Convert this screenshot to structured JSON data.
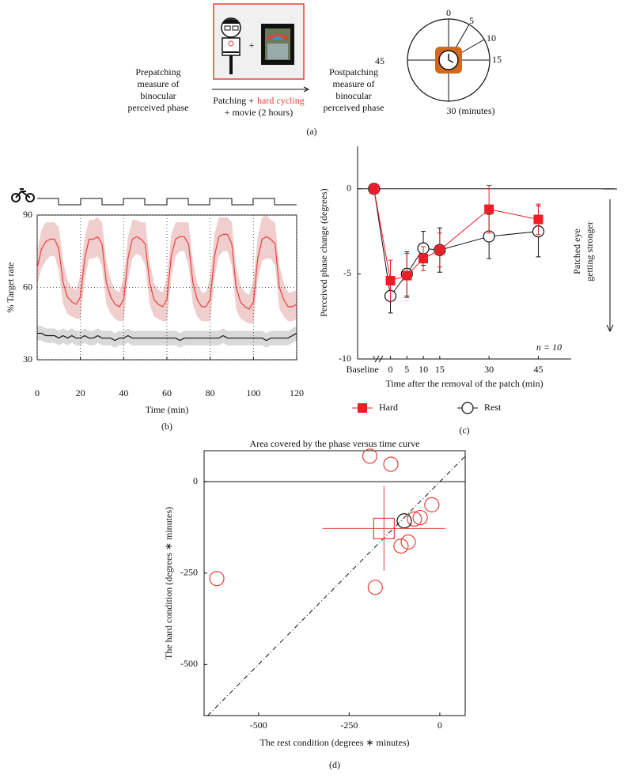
{
  "diagram": {
    "prepatching": [
      "Prepatching",
      "measure of",
      "binocular",
      "perceived phase"
    ],
    "patching": [
      "Patching +",
      "hard cycling",
      "+ movie (2 hours)"
    ],
    "plus": "+",
    "postpatching": [
      "Postpatching",
      "measure of",
      "binocular",
      "perceived phase"
    ],
    "clock_labels": [
      "0",
      "5",
      "10",
      "15",
      "45",
      "30 (minutes)"
    ],
    "panel": "(a)"
  },
  "chart_data": [
    {
      "type": "line",
      "panel": "(b)",
      "x_label": "Time (min)",
      "y_label": "% Target rate",
      "xlim": [
        0,
        120
      ],
      "ylim": [
        30,
        90
      ],
      "xticks": [
        0,
        20,
        40,
        60,
        80,
        100,
        120
      ],
      "yticks": [
        30,
        60,
        90
      ],
      "grid": true,
      "x": [
        0,
        2,
        4,
        6,
        8,
        10,
        12,
        14,
        16,
        18,
        20,
        22,
        24,
        26,
        28,
        30,
        32,
        34,
        36,
        38,
        40,
        42,
        44,
        46,
        48,
        50,
        52,
        54,
        56,
        58,
        60,
        62,
        64,
        66,
        68,
        70,
        72,
        74,
        76,
        78,
        80,
        82,
        84,
        86,
        88,
        90,
        92,
        94,
        96,
        98,
        100,
        102,
        104,
        106,
        108,
        110,
        112,
        114,
        116,
        118,
        120
      ],
      "series": [
        {
          "color": "#e8403a",
          "band_color": "rgba(200,60,60,0.25)",
          "values": [
            68,
            76,
            79,
            80,
            80,
            76,
            62,
            56,
            54,
            53,
            56,
            72,
            80,
            80,
            81,
            78,
            62,
            56,
            53,
            52,
            55,
            72,
            80,
            81,
            80,
            78,
            62,
            55,
            53,
            52,
            55,
            73,
            80,
            81,
            81,
            78,
            62,
            55,
            52,
            52,
            55,
            73,
            81,
            82,
            82,
            78,
            60,
            54,
            52,
            51,
            54,
            72,
            80,
            81,
            80,
            78,
            60,
            55,
            52,
            52,
            53
          ],
          "band": [
            7,
            8,
            8,
            7,
            7,
            9,
            9,
            7,
            6,
            6,
            9,
            9,
            8,
            8,
            8,
            9,
            9,
            7,
            6,
            6,
            9,
            9,
            8,
            7,
            7,
            9,
            9,
            7,
            6,
            6,
            9,
            9,
            7,
            6,
            6,
            9,
            9,
            7,
            6,
            6,
            9,
            9,
            8,
            7,
            7,
            9,
            9,
            7,
            6,
            6,
            9,
            9,
            9,
            9,
            8,
            9,
            9,
            7,
            6,
            6,
            6
          ]
        },
        {
          "color": "#111111",
          "band_color": "rgba(0,0,0,0.15)",
          "values": [
            41,
            41,
            40,
            40,
            40,
            39,
            40,
            39,
            40,
            39,
            39,
            40,
            39,
            39,
            40,
            39,
            39,
            39,
            38,
            39,
            39,
            40,
            39,
            39,
            39,
            39,
            39,
            39,
            39,
            39,
            39,
            39,
            39,
            38,
            39,
            39,
            39,
            39,
            39,
            39,
            39,
            39,
            39,
            40,
            39,
            39,
            39,
            39,
            39,
            39,
            39,
            39,
            39,
            38,
            39,
            39,
            39,
            39,
            39,
            40,
            41
          ],
          "band": [
            3,
            3,
            3,
            3,
            3,
            3,
            3,
            3,
            3,
            3,
            3,
            3,
            3,
            3,
            3,
            3,
            3,
            3,
            3,
            3,
            3,
            3,
            3,
            3,
            3,
            3,
            3,
            3,
            3,
            3,
            3,
            3,
            3,
            3,
            3,
            3,
            3,
            3,
            3,
            3,
            3,
            3,
            3,
            3,
            3,
            3,
            3,
            3,
            3,
            3,
            3,
            3,
            3,
            3,
            3,
            3,
            3,
            3,
            3,
            3,
            3
          ]
        }
      ]
    },
    {
      "type": "errorbar",
      "panel": "(c)",
      "x_label": "Time after the removal of the patch (min)",
      "y_label": "Perceived phase change (degrees)",
      "annotation": "n = 10",
      "side_note": [
        "Patched eye",
        "getting stronger"
      ],
      "xlim": [
        -10,
        55
      ],
      "ylim": [
        -10,
        2.5
      ],
      "xticks": [
        {
          "value": -5,
          "label": "Baseline"
        },
        0,
        5,
        10,
        15,
        30,
        45
      ],
      "yticks": [
        -10,
        -5,
        0
      ],
      "x": [
        -5,
        0,
        5,
        10,
        15,
        30,
        45
      ],
      "series": [
        {
          "name": "Rest",
          "color": "#111111",
          "marker": "circle",
          "values": [
            0,
            -6.3,
            -5.0,
            -3.5,
            -3.6,
            -2.8,
            -2.5
          ],
          "err": [
            0,
            1.0,
            1.3,
            1.0,
            1.3,
            1.3,
            1.5
          ]
        },
        {
          "name": "Hard",
          "color": "#ee1c25",
          "marker": "square",
          "values": [
            0,
            -5.4,
            -5.1,
            -4.1,
            -3.6,
            -1.2,
            -1.8
          ],
          "err": [
            0,
            1.2,
            1.3,
            0.7,
            1.0,
            1.4,
            0.9
          ]
        }
      ]
    },
    {
      "type": "scatter",
      "panel": "(d)",
      "title": "Area covered by the phase versus time curve",
      "x_label": "The rest condition (degrees ∗ minutes)",
      "y_label": "The hard condition (degrees ∗ minutes)",
      "xlim": [
        -650,
        70
      ],
      "ylim": [
        -640,
        85
      ],
      "xticks": [
        -500,
        -250,
        0
      ],
      "yticks": [
        -500,
        -250,
        0
      ],
      "diagonal": true,
      "series": [
        {
          "color": "#e8403a",
          "x": [
            -615,
            -193,
            -135,
            -22,
            -54,
            -70,
            -87,
            -107,
            -178
          ],
          "values": [
            -265,
            70,
            48,
            -63,
            -98,
            -102,
            -165,
            -176,
            -289
          ]
        },
        {
          "color": "#111111",
          "x": [
            -98
          ],
          "values": [
            -107
          ]
        }
      ],
      "mean": {
        "color": "#e8403a",
        "x": -154,
        "y": -128,
        "xerr": 170,
        "yerr": 116
      }
    }
  ]
}
